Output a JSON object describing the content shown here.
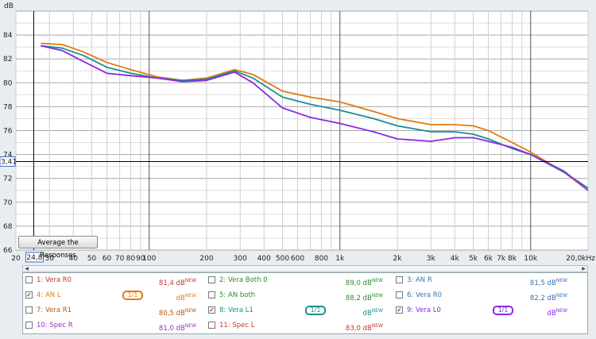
{
  "chart_data": {
    "type": "line",
    "ylabel": "dB",
    "xlabel": "",
    "x_unit": "Hz",
    "x_scale": "log",
    "xlim": [
      20,
      20000
    ],
    "ylim": [
      66,
      86
    ],
    "yticks": [
      "66",
      "68",
      "70",
      "72",
      "74",
      "76",
      "78",
      "80",
      "82",
      "84"
    ],
    "xticks": [
      {
        "v": 20,
        "label": "20"
      },
      {
        "v": 30,
        "label": "30"
      },
      {
        "v": 40,
        "label": "40"
      },
      {
        "v": 50,
        "label": "50"
      },
      {
        "v": 60,
        "label": "60"
      },
      {
        "v": 70,
        "label": "70"
      },
      {
        "v": 80,
        "label": "80"
      },
      {
        "v": 90,
        "label": "90"
      },
      {
        "v": 100,
        "label": "100"
      },
      {
        "v": 200,
        "label": "200"
      },
      {
        "v": 300,
        "label": "300"
      },
      {
        "v": 400,
        "label": "400"
      },
      {
        "v": 500,
        "label": "500"
      },
      {
        "v": 600,
        "label": "600"
      },
      {
        "v": 800,
        "label": "800"
      },
      {
        "v": 1000,
        "label": "1k"
      },
      {
        "v": 2000,
        "label": "2k"
      },
      {
        "v": 3000,
        "label": "3k"
      },
      {
        "v": 4000,
        "label": "4k"
      },
      {
        "v": 5000,
        "label": "5k"
      },
      {
        "v": 6000,
        "label": "6k"
      },
      {
        "v": 7000,
        "label": "7k"
      },
      {
        "v": 8000,
        "label": "8k"
      },
      {
        "v": 10000,
        "label": "10k"
      },
      {
        "v": 20000,
        "label": "20,0kHz"
      }
    ],
    "grid": true,
    "cursor": {
      "x_label": "24,8",
      "x": 24.8,
      "y_label": "3,41",
      "y": 73.41
    },
    "series": [
      {
        "name": "AN L",
        "color": "#e07b10",
        "x": [
          27,
          35,
          45,
          60,
          80,
          110,
          150,
          200,
          280,
          350,
          500,
          700,
          1000,
          1500,
          2000,
          3000,
          4000,
          5000,
          6000,
          8000,
          10000,
          15000,
          20000
        ],
        "y": [
          83.3,
          83.2,
          82.6,
          81.7,
          81.1,
          80.5,
          80.2,
          80.4,
          81.1,
          80.7,
          79.3,
          78.8,
          78.4,
          77.6,
          77.0,
          76.5,
          76.5,
          76.4,
          76.0,
          75.0,
          74.2,
          72.5,
          71.0
        ]
      },
      {
        "name": "Vera L1",
        "color": "#1b8f8f",
        "x": [
          27,
          35,
          45,
          60,
          80,
          110,
          150,
          200,
          280,
          350,
          500,
          700,
          1000,
          1500,
          2000,
          3000,
          4000,
          5000,
          6000,
          8000,
          10000,
          15000,
          20000
        ],
        "y": [
          83.1,
          82.9,
          82.3,
          81.3,
          80.8,
          80.4,
          80.2,
          80.3,
          81.0,
          80.4,
          78.8,
          78.2,
          77.7,
          77.0,
          76.4,
          75.9,
          75.9,
          75.7,
          75.3,
          74.5,
          74.0,
          72.5,
          71.2
        ]
      },
      {
        "name": "Vera L0",
        "color": "#8a2be2",
        "x": [
          27,
          35,
          45,
          60,
          80,
          110,
          150,
          200,
          280,
          350,
          500,
          700,
          1000,
          1500,
          2000,
          3000,
          4000,
          5000,
          6000,
          8000,
          10000,
          15000,
          20000
        ],
        "y": [
          83.1,
          82.7,
          81.8,
          80.8,
          80.6,
          80.4,
          80.1,
          80.2,
          80.9,
          80.0,
          77.9,
          77.1,
          76.6,
          75.9,
          75.3,
          75.1,
          75.4,
          75.4,
          75.1,
          74.6,
          74.0,
          72.6,
          71.0
        ]
      }
    ]
  },
  "button": {
    "average_label": "Average the Responses"
  },
  "legend": {
    "rows": [
      [
        {
          "checked": false,
          "name": "1: Vera R0",
          "value": "81,4 dB",
          "sup": "NEW",
          "color": "#c0392b",
          "octave": ""
        },
        {
          "checked": false,
          "name": "2: Vera Both 0",
          "value": "89,0 dB",
          "sup": "NEW",
          "color": "#2e8b2e",
          "octave": ""
        },
        {
          "checked": false,
          "name": "3: AN R",
          "value": "81,5 dB",
          "sup": "NEW",
          "color": "#3a6fb0",
          "octave": ""
        }
      ],
      [
        {
          "checked": true,
          "name": "4: AN L",
          "value": "dB",
          "sup": "NEW",
          "color": "#e07b10",
          "octave": "1/1"
        },
        {
          "checked": false,
          "name": "5: AN both",
          "value": "88,2 dB",
          "sup": "NEW",
          "color": "#2e8b2e",
          "octave": ""
        },
        {
          "checked": false,
          "name": "6: Vera R0",
          "value": "82,2 dB",
          "sup": "NEW",
          "color": "#3a6fb0",
          "octave": ""
        }
      ],
      [
        {
          "checked": false,
          "name": "7: Vera R1",
          "value": "80,5 dB",
          "sup": "NEW",
          "color": "#b35a10",
          "octave": ""
        },
        {
          "checked": true,
          "name": "8: Vera L1",
          "value": "dB",
          "sup": "NEW",
          "color": "#1b8f8f",
          "octave": "1/1"
        },
        {
          "checked": true,
          "name": "9: Vera L0",
          "value": "dB",
          "sup": "NEW",
          "color": "#8a2be2",
          "octave": "1/1"
        }
      ],
      [
        {
          "checked": false,
          "name": "10: Spec R",
          "value": "81,0 dB",
          "sup": "NEW",
          "color": "#9b30c0",
          "octave": ""
        },
        {
          "checked": false,
          "name": "11: Spec L",
          "value": "83,0 dB",
          "sup": "NEW",
          "color": "#c0392b",
          "octave": ""
        }
      ]
    ]
  }
}
